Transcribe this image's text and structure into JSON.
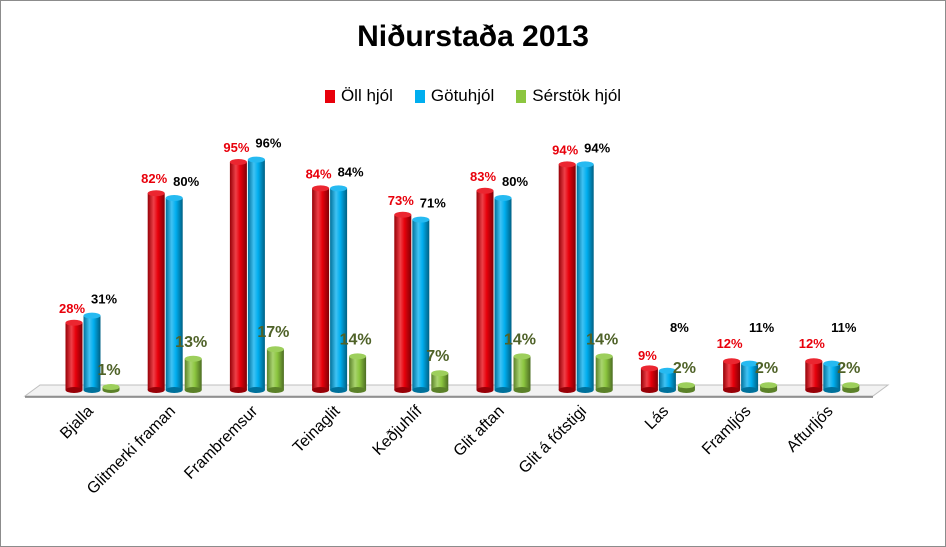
{
  "chart_data": {
    "type": "bar",
    "title": "Niðurstaða 2013",
    "legend_position": "top",
    "categories": [
      "Bjalla",
      "Glitmerki framan",
      "Frambremsur",
      "Teinaglit",
      "Keðjuhlíf",
      "Glit aftan",
      "Glit á fótstigi",
      "Lás",
      "Framljós",
      "Afturljós"
    ],
    "series": [
      {
        "name": "Öll hjól",
        "color": "#e8000b",
        "label_color": "#e8000b",
        "values": [
          28,
          82,
          95,
          84,
          73,
          83,
          94,
          9,
          12,
          12
        ],
        "labels": [
          "28%",
          "82%",
          "95%",
          "84%",
          "73%",
          "83%",
          "94%",
          "9%",
          "12%",
          "12%"
        ]
      },
      {
        "name": "Götuhjól",
        "color": "#00aeef",
        "label_color": "#000000",
        "values": [
          31,
          80,
          96,
          84,
          71,
          80,
          94,
          8,
          11,
          11
        ],
        "labels": [
          "31%",
          "80%",
          "96%",
          "84%",
          "71%",
          "80%",
          "94%",
          "8%",
          "11%",
          "11%"
        ]
      },
      {
        "name": "Sérstök hjól",
        "color": "#8cc63f",
        "label_color": "#4f6228",
        "values": [
          1,
          13,
          17,
          14,
          7,
          14,
          14,
          2,
          2,
          2
        ],
        "labels": [
          "1%",
          "13%",
          "17%",
          "14%",
          "7%",
          "14%",
          "14%",
          "2%",
          "2%",
          "2%"
        ]
      }
    ],
    "ylim": [
      0,
      100
    ],
    "grid": false,
    "xlabel": "",
    "ylabel": ""
  }
}
